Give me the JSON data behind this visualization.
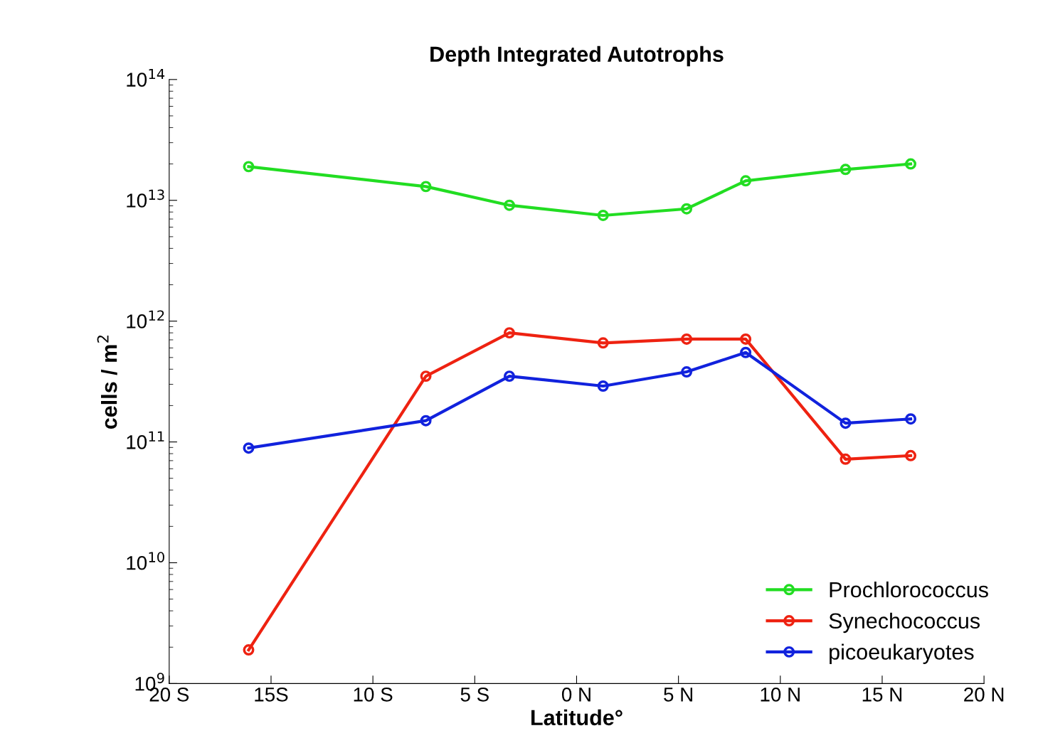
{
  "chart_data": {
    "type": "line",
    "title": "Depth Integrated Autotrophs",
    "xlabel": "Latitude°",
    "ylabel": "cells / m$^{2}$",
    "x": [
      -16.1,
      -7.4,
      -3.3,
      1.3,
      5.4,
      8.3,
      13.2,
      16.4
    ],
    "series": [
      {
        "name": "Prochlorococcus",
        "color": "#22dd22",
        "values": [
          19000000000000.0,
          13000000000000.0,
          9100000000000.0,
          7500000000000.0,
          8500000000000.0,
          14500000000000.0,
          18000000000000.0,
          20000000000000.0
        ]
      },
      {
        "name": "Synechococcus",
        "color": "#ee2211",
        "values": [
          1900000000.0,
          350000000000.0,
          800000000000.0,
          660000000000.0,
          710000000000.0,
          710000000000.0,
          72000000000.0,
          77000000000.0
        ]
      },
      {
        "name": "picoeukaryotes",
        "color": "#1122dd",
        "values": [
          89000000000.0,
          150000000000.0,
          350000000000.0,
          290000000000.0,
          380000000000.0,
          550000000000.0,
          143000000000.0,
          155000000000.0
        ]
      }
    ],
    "log": "y",
    "xlim": [
      -20,
      20
    ],
    "xticks": [
      {
        "value": -20,
        "label": "20 S"
      },
      {
        "value": -15,
        "label": "15S"
      },
      {
        "value": -10,
        "label": "10 S"
      },
      {
        "value": -5,
        "label": "5 S"
      },
      {
        "value": 0,
        "label": "0 N"
      },
      {
        "value": 5,
        "label": "5 N"
      },
      {
        "value": 10,
        "label": "10 N"
      },
      {
        "value": 15,
        "label": "15 N"
      },
      {
        "value": 20,
        "label": "20 N"
      }
    ],
    "ylim": [
      1000000000.0,
      100000000000000.0
    ],
    "yticks": [
      {
        "value": 1000000000.0,
        "label": "10$^{9}$"
      },
      {
        "value": 10000000000.0,
        "label": "10$^{10}$"
      },
      {
        "value": 100000000000.0,
        "label": "10$^{11}$"
      },
      {
        "value": 1000000000000.0,
        "label": "10$^{12}$"
      },
      {
        "value": 10000000000000.0,
        "label": "10$^{13}$"
      },
      {
        "value": 100000000000000.0,
        "label": "10$^{14}$"
      }
    ],
    "grid": false,
    "legend": "bottom right",
    "marker": "circle",
    "line_style": "solid"
  }
}
